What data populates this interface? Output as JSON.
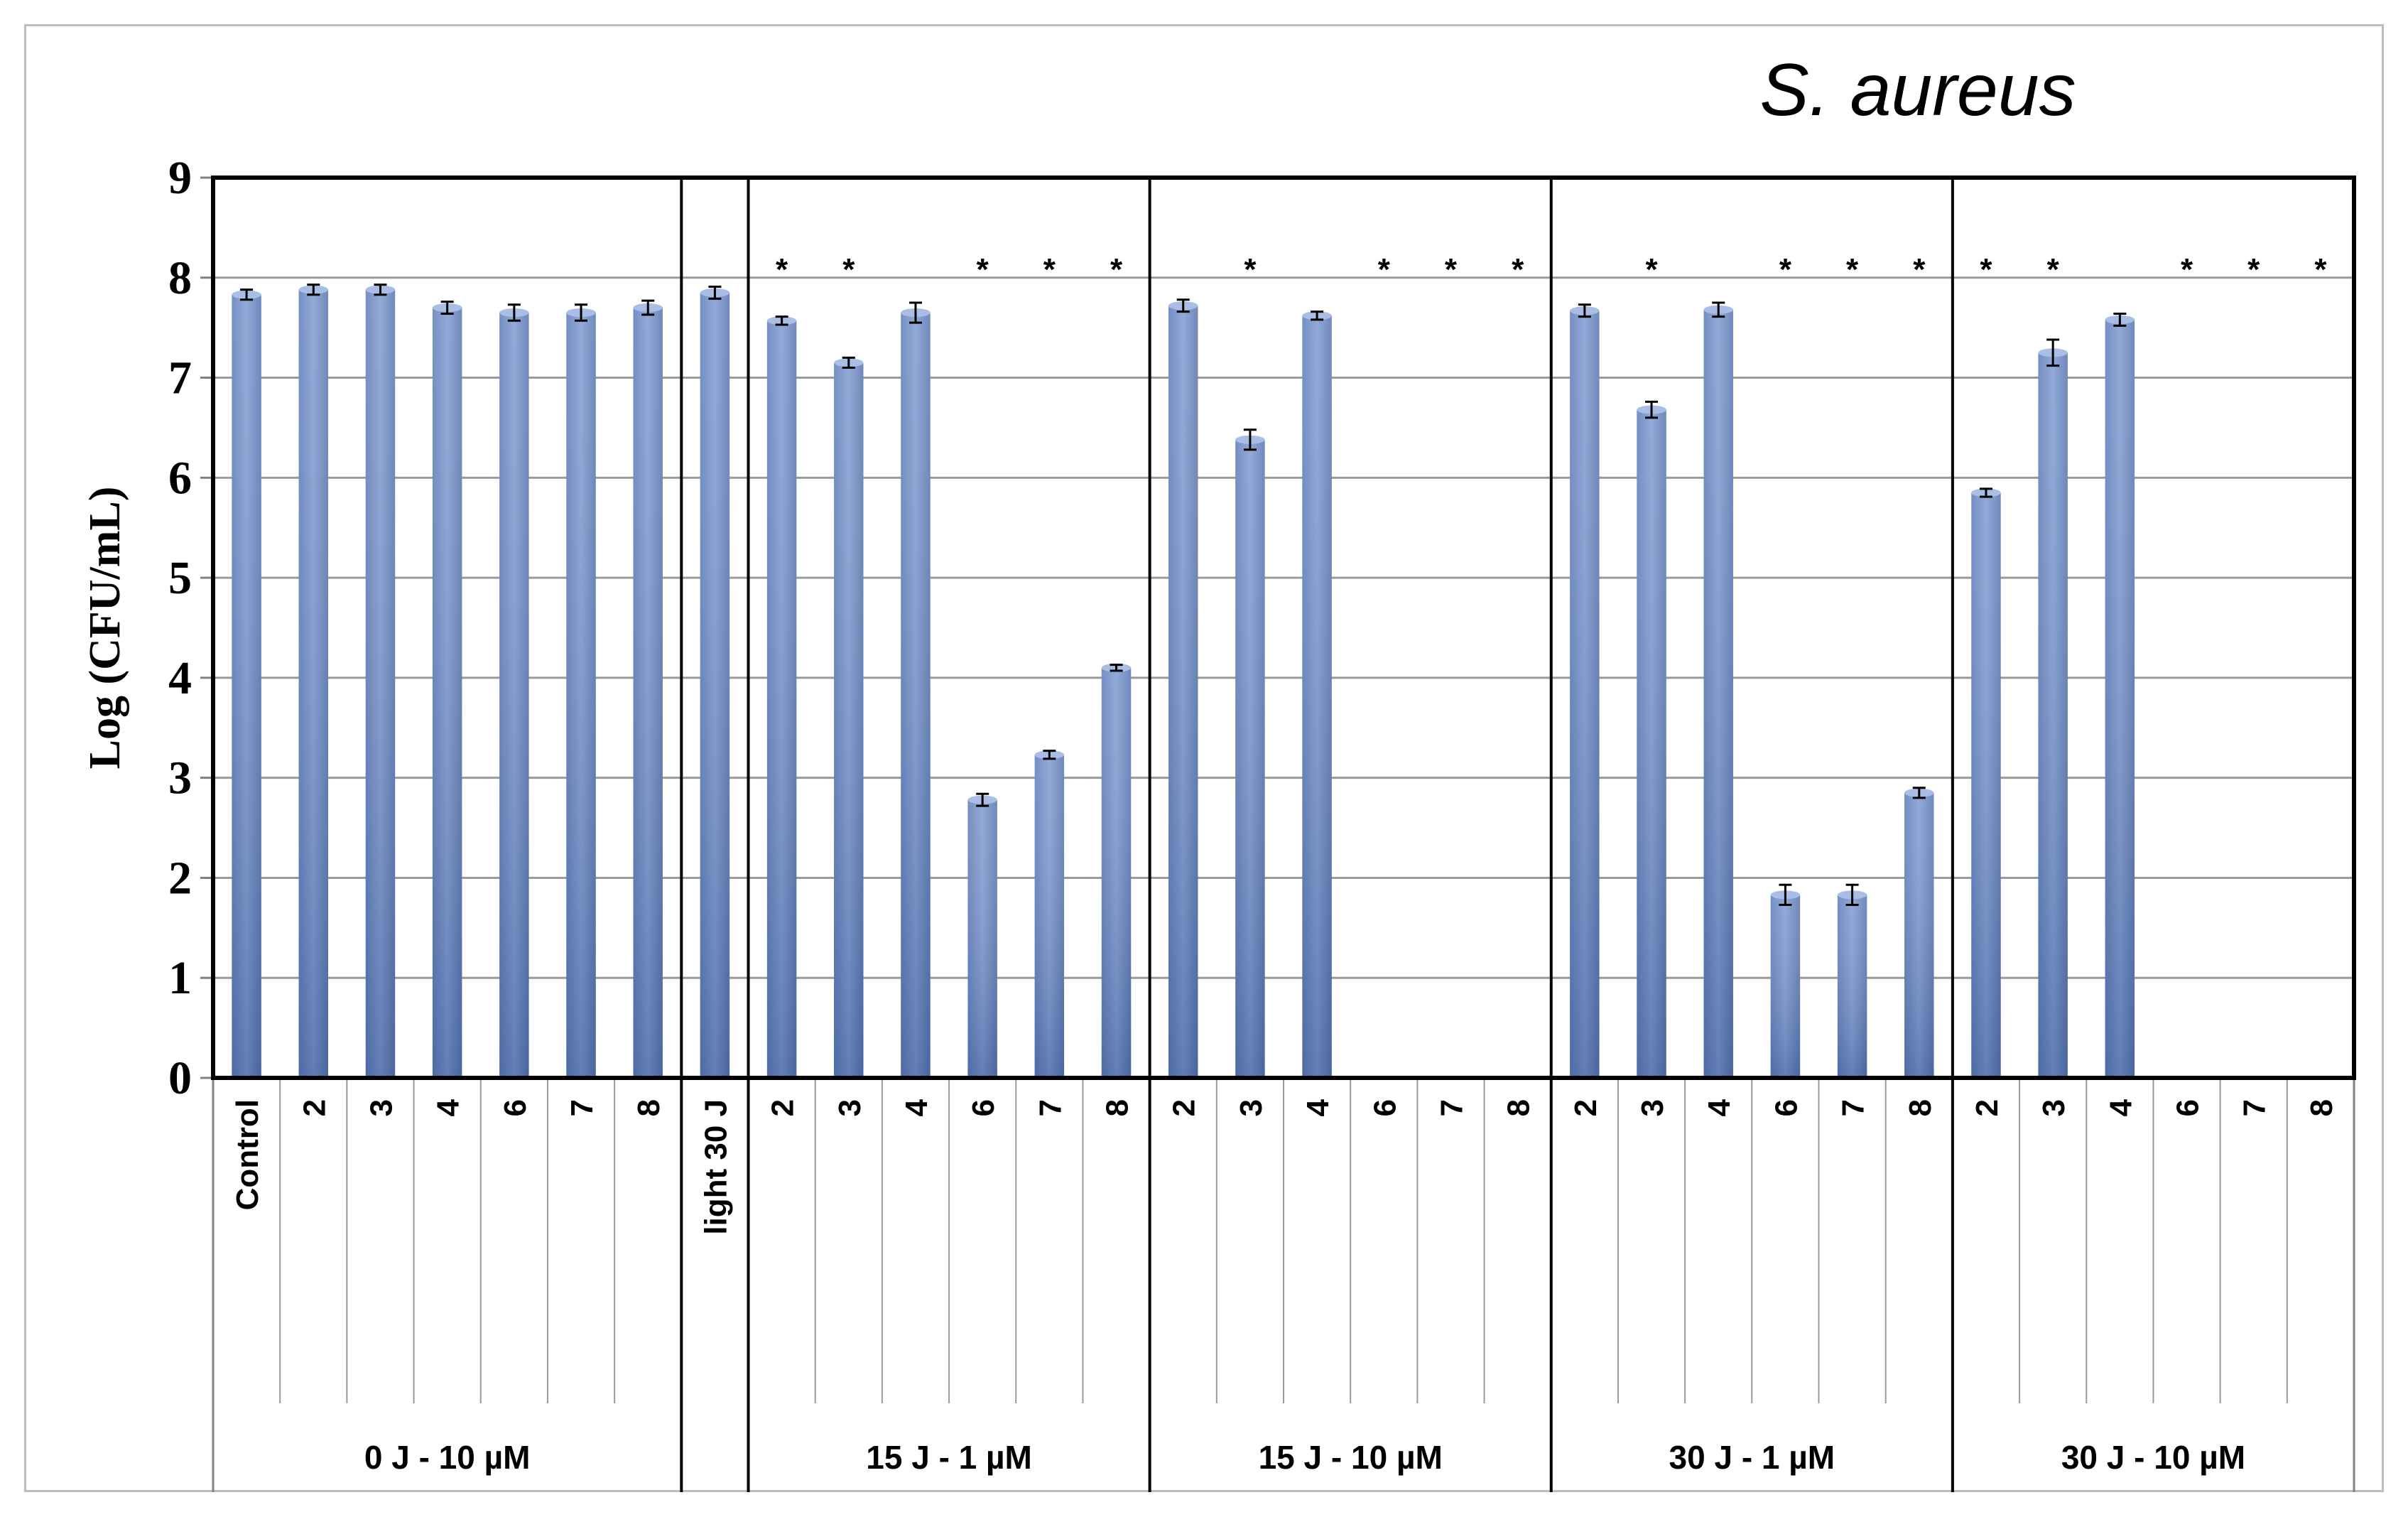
{
  "chart_data": {
    "type": "bar",
    "title": "S. aureus",
    "ylabel": "Log (CFU/mL)",
    "xlabel": "",
    "ylim": [
      0,
      9
    ],
    "yticks": [
      0,
      1,
      2,
      3,
      4,
      5,
      6,
      7,
      8,
      9
    ],
    "grid": true,
    "bar_color": "#7f9bd1",
    "groups": [
      {
        "label": "0 J - 10 µM",
        "categories": [
          "Control",
          "2",
          "3",
          "4",
          "6",
          "7",
          "8"
        ],
        "values": [
          7.83,
          7.88,
          7.88,
          7.7,
          7.65,
          7.65,
          7.7
        ],
        "errors": [
          0.05,
          0.05,
          0.05,
          0.06,
          0.08,
          0.08,
          0.07
        ],
        "significant": [
          false,
          false,
          false,
          false,
          false,
          false,
          false
        ]
      },
      {
        "label": "",
        "categories": [
          "light 30 J"
        ],
        "values": [
          7.85
        ],
        "errors": [
          0.06
        ],
        "significant": [
          false
        ]
      },
      {
        "label": "15 J - 1 µM",
        "categories": [
          "2",
          "3",
          "4",
          "6",
          "7",
          "8"
        ],
        "values": [
          7.57,
          7.15,
          7.65,
          2.78,
          3.23,
          4.1
        ],
        "errors": [
          0.04,
          0.05,
          0.1,
          0.06,
          0.04,
          0.03
        ],
        "significant": [
          true,
          true,
          false,
          true,
          true,
          true
        ]
      },
      {
        "label": "15 J - 10 µM",
        "categories": [
          "2",
          "3",
          "4",
          "6",
          "7",
          "8"
        ],
        "values": [
          7.72,
          6.38,
          7.62,
          0,
          0,
          0
        ],
        "errors": [
          0.06,
          0.1,
          0.04,
          0,
          0,
          0
        ],
        "significant": [
          false,
          true,
          false,
          true,
          true,
          true
        ]
      },
      {
        "label": "30 J - 1 µM",
        "categories": [
          "2",
          "3",
          "4",
          "6",
          "7",
          "8"
        ],
        "values": [
          7.67,
          6.68,
          7.68,
          1.83,
          1.83,
          2.85
        ],
        "errors": [
          0.06,
          0.08,
          0.07,
          0.1,
          0.1,
          0.05
        ],
        "significant": [
          false,
          true,
          false,
          true,
          true,
          true
        ]
      },
      {
        "label": "30 J - 10 µM",
        "categories": [
          "2",
          "3",
          "4",
          "6",
          "7",
          "8"
        ],
        "values": [
          5.85,
          7.25,
          7.58,
          0,
          0,
          0
        ],
        "errors": [
          0.04,
          0.13,
          0.06,
          0,
          0,
          0
        ],
        "significant": [
          true,
          true,
          false,
          true,
          true,
          true
        ]
      }
    ],
    "significance_marker": "*"
  }
}
